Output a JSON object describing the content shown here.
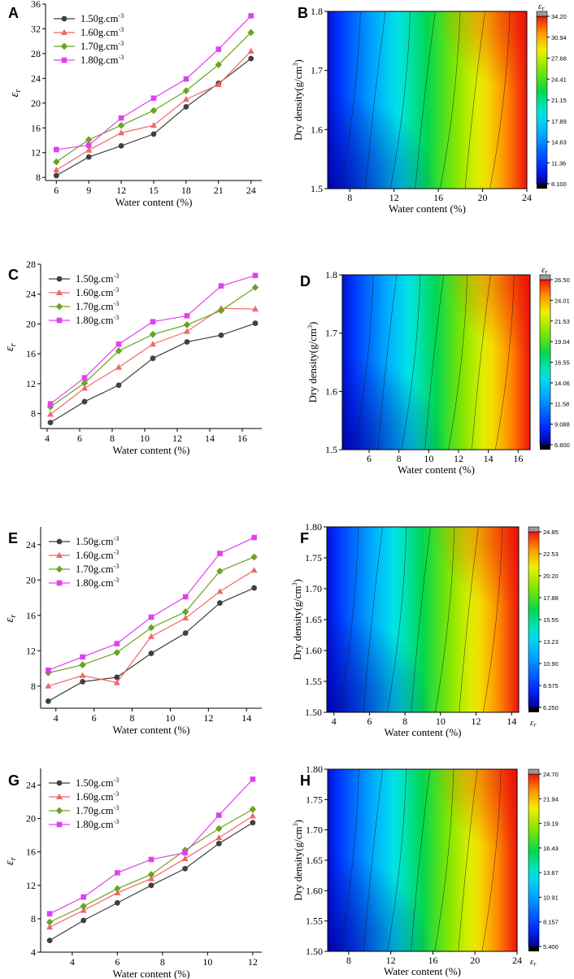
{
  "panels": [
    "A",
    "B",
    "C",
    "D",
    "E",
    "F",
    "G",
    "H"
  ],
  "legend": [
    "1.50g.cm",
    "1.60g.cm",
    "1.70g.cm",
    "1.80g.cm"
  ],
  "legend_sup": "-3",
  "eps_symbol": "ε",
  "eps_sub": "r",
  "xlabel": "Water content (%)",
  "ylabel_contour": "Dry density(g/cm",
  "ylabel_contour_sup": "3",
  "ylabel_contour_close": ")",
  "series_colors": [
    "#404040",
    "#f06868",
    "#6aa31f",
    "#e040f0"
  ],
  "chart_data": [
    {
      "id": "A",
      "type": "line",
      "title": "",
      "xlabel": "Water content (%)",
      "ylabel": "εr",
      "x": [
        6,
        9,
        12,
        15,
        18,
        21,
        24
      ],
      "xlim": [
        5,
        25
      ],
      "ylim": [
        7.5,
        36
      ],
      "xticks": [
        6,
        9,
        12,
        15,
        18,
        21,
        24
      ],
      "yticks": [
        8,
        12,
        16,
        20,
        24,
        28,
        32,
        36
      ],
      "series": [
        {
          "name": "1.50g.cm-3",
          "values": [
            8.3,
            11.3,
            13.1,
            15.0,
            19.4,
            23.2,
            27.2
          ]
        },
        {
          "name": "1.60g.cm-3",
          "values": [
            9.2,
            12.4,
            15.2,
            16.4,
            20.6,
            23.0,
            28.4
          ]
        },
        {
          "name": "1.70g.cm-3",
          "values": [
            10.5,
            14.1,
            16.4,
            18.8,
            22.0,
            26.2,
            31.4
          ]
        },
        {
          "name": "1.80g.cm-3",
          "values": [
            12.5,
            13.2,
            17.6,
            20.8,
            23.9,
            28.7,
            34.1
          ]
        }
      ]
    },
    {
      "id": "B",
      "type": "heatmap",
      "xlabel": "Water content (%)",
      "ylabel": "Dry density(g/cm3)",
      "xlim": [
        6,
        24
      ],
      "ylim": [
        1.5,
        1.8
      ],
      "xticks": [
        8,
        12,
        16,
        20,
        24
      ],
      "yticks": [
        1.5,
        1.6,
        1.7,
        1.8
      ],
      "colorbar": {
        "title": "εr",
        "min": 8.1,
        "max": 34.2,
        "ticks": [
          "34.20",
          "30.94",
          "27.68",
          "24.41",
          "21.15",
          "17.89",
          "14.63",
          "11.36",
          "8.100"
        ]
      }
    },
    {
      "id": "C",
      "type": "line",
      "xlabel": "Water content (%)",
      "ylabel": "εr",
      "x": [
        4.2,
        6.3,
        8.4,
        10.5,
        12.6,
        14.7,
        16.8
      ],
      "xlim": [
        3.6,
        17.2
      ],
      "ylim": [
        6,
        28
      ],
      "xticks": [
        4,
        6,
        8,
        10,
        12,
        14,
        16
      ],
      "yticks": [
        8,
        12,
        16,
        20,
        24,
        28
      ],
      "series": [
        {
          "name": "1.50g.cm-3",
          "values": [
            6.8,
            9.6,
            11.8,
            15.4,
            17.6,
            18.5,
            20.1
          ]
        },
        {
          "name": "1.60g.cm-3",
          "values": [
            7.9,
            11.4,
            14.2,
            17.3,
            19.0,
            22.1,
            22.0
          ]
        },
        {
          "name": "1.70g.cm-3",
          "values": [
            8.9,
            12.1,
            16.4,
            18.6,
            19.9,
            21.8,
            24.9
          ]
        },
        {
          "name": "1.80g.cm-3",
          "values": [
            9.3,
            12.8,
            17.3,
            20.3,
            21.1,
            25.1,
            26.5
          ]
        }
      ]
    },
    {
      "id": "D",
      "type": "heatmap",
      "xlabel": "Water content (%)",
      "ylabel": "Dry density(g/cm3)",
      "xlim": [
        4.2,
        16.8
      ],
      "ylim": [
        1.5,
        1.8
      ],
      "xticks": [
        6,
        8,
        10,
        12,
        14,
        16
      ],
      "yticks": [
        1.5,
        1.6,
        1.7,
        1.8
      ],
      "colorbar": {
        "title": "εr",
        "min": 6.6,
        "max": 26.5,
        "ticks": [
          "26.50",
          "24.01",
          "21.53",
          "19.04",
          "16.55",
          "14.06",
          "11.58",
          "9.088",
          "6.600"
        ]
      }
    },
    {
      "id": "E",
      "type": "line",
      "xlabel": "Water content (%)",
      "ylabel": "εr",
      "x": [
        3.6,
        5.4,
        7.2,
        9.0,
        10.8,
        12.6,
        14.4
      ],
      "xlim": [
        3.2,
        14.8
      ],
      "ylim": [
        5.5,
        26
      ],
      "xticks": [
        4,
        6,
        8,
        10,
        12,
        14
      ],
      "yticks": [
        8,
        12,
        16,
        20,
        24
      ],
      "series": [
        {
          "name": "1.50g.cm-3",
          "values": [
            6.3,
            8.5,
            9.0,
            11.7,
            14.0,
            17.4,
            19.1
          ]
        },
        {
          "name": "1.60g.cm-3",
          "values": [
            8.0,
            9.2,
            8.4,
            13.6,
            15.7,
            18.7,
            21.1
          ]
        },
        {
          "name": "1.70g.cm-3",
          "values": [
            9.5,
            10.4,
            11.8,
            14.6,
            16.4,
            21.0,
            22.6
          ]
        },
        {
          "name": "1.80g.cm-3",
          "values": [
            9.8,
            11.3,
            12.8,
            15.8,
            18.1,
            23.0,
            24.8
          ]
        }
      ]
    },
    {
      "id": "F",
      "type": "heatmap",
      "xlabel": "Water content (%)",
      "ylabel": "Dry density(g/cm3)",
      "xlim": [
        3.6,
        14.4
      ],
      "ylim": [
        1.5,
        1.8
      ],
      "xticks": [
        4,
        6,
        8,
        10,
        12,
        14
      ],
      "yticks": [
        1.5,
        1.55,
        1.6,
        1.65,
        1.7,
        1.75,
        1.8
      ],
      "colorbar": {
        "title": "εr",
        "min": 6.25,
        "max": 24.85,
        "ticks": [
          "24.85",
          "22.53",
          "20.20",
          "17.88",
          "15.55",
          "13.23",
          "10.90",
          "8.575",
          "6.250"
        ]
      }
    },
    {
      "id": "G",
      "type": "line",
      "xlabel": "Water content (%)",
      "ylabel": "εr",
      "x": [
        3,
        4.5,
        6,
        7.5,
        9,
        10.5,
        12
      ],
      "xlim": [
        2.6,
        12.4
      ],
      "ylim": [
        4,
        26
      ],
      "xticks": [
        4,
        6,
        8,
        10,
        12
      ],
      "yticks": [
        4,
        8,
        12,
        16,
        20,
        24
      ],
      "series": [
        {
          "name": "1.50g.cm-3",
          "values": [
            5.4,
            7.8,
            9.9,
            12.0,
            14.0,
            17.0,
            19.5
          ]
        },
        {
          "name": "1.60g.cm-3",
          "values": [
            7.0,
            9.0,
            11.1,
            12.8,
            15.2,
            17.7,
            20.3
          ]
        },
        {
          "name": "1.70g.cm-3",
          "values": [
            7.6,
            9.5,
            11.6,
            13.3,
            16.2,
            18.8,
            21.1
          ]
        },
        {
          "name": "1.80g.cm-3",
          "values": [
            8.6,
            10.6,
            13.5,
            15.1,
            15.9,
            20.4,
            24.7
          ]
        }
      ]
    },
    {
      "id": "H",
      "type": "heatmap",
      "xlabel": "Water content (%)",
      "ylabel": "Dry density(g/cm3)",
      "xlim": [
        6,
        24
      ],
      "ylim": [
        1.5,
        1.8
      ],
      "xticks": [
        8,
        12,
        16,
        20,
        24
      ],
      "yticks": [
        1.5,
        1.55,
        1.6,
        1.65,
        1.7,
        1.75,
        1.8
      ],
      "colorbar": {
        "title": "εr",
        "min": 5.4,
        "max": 24.7,
        "ticks": [
          "24.70",
          "21.94",
          "19.19",
          "16.43",
          "13.67",
          "10.91",
          "8.157",
          "5.400"
        ]
      }
    }
  ]
}
